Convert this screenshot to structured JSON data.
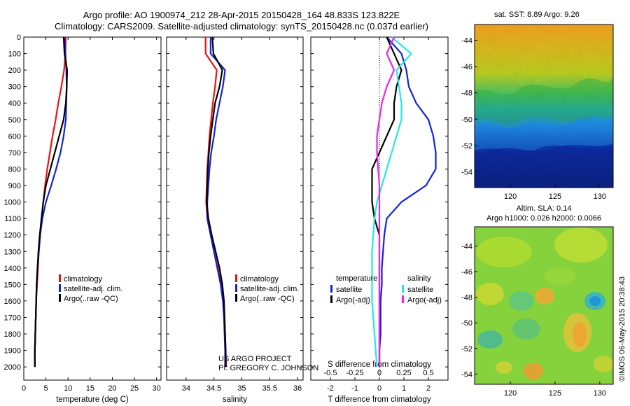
{
  "title_line1": "Argo profile: AO 1900974_212 28-Apr-2015 20150428_164 48.833S 123.822E",
  "title_line2": "Climatology: CARS2009. Satellite-adjusted climatology: synTS_20150428.nc (0.037d earlier)",
  "colors": {
    "climatology": "#ee1111",
    "satellite": "#1122dd",
    "argo": "#000000",
    "sal_satellite": "#22e8e8",
    "sal_argo": "#ee22ee"
  },
  "credit": {
    "line1": "US ARGO PROJECT",
    "line2": "PI: GREGORY C. JOHNSON"
  },
  "watermark": "©IMOS 06-May-2015 20:38:43",
  "legend_profile": [
    "climatology",
    "satellite-adj. clim.",
    "Argo(..raw -QC)"
  ],
  "legend_diff": {
    "temperature_header": "temperature",
    "salinity_header": "salinity",
    "items": [
      "satellite",
      "Argo(-adj)"
    ]
  },
  "map_sst": {
    "title": "sat. SST: 8.89 Argo: 9.26",
    "yticks": [
      "-44",
      "-46",
      "-48",
      "-50",
      "-52",
      "-54"
    ],
    "xticks": [
      "120",
      "125",
      "130"
    ]
  },
  "map_sla": {
    "title1": "Altim. SLA: 0.14",
    "title2": "Argo h1000: 0.026 h2000: 0.0066",
    "yticks": [
      "-44",
      "-46",
      "-48",
      "-50",
      "-52",
      "-54"
    ],
    "xticks": [
      "120",
      "125",
      "130"
    ]
  },
  "chart_data": [
    {
      "type": "line",
      "xlabel": "temperature (deg C)",
      "ylabel": "",
      "xlim": [
        0,
        31
      ],
      "ylim": [
        2080,
        0
      ],
      "xticks": [
        0,
        5,
        10,
        15,
        20,
        25,
        30
      ],
      "yticks": [
        0,
        100,
        200,
        300,
        400,
        500,
        600,
        700,
        800,
        900,
        1000,
        1100,
        1200,
        1300,
        1400,
        1500,
        1600,
        1700,
        1800,
        1900,
        2000
      ],
      "series": [
        {
          "name": "climatology",
          "color": "red",
          "x": [
            9.5,
            9.4,
            9.1,
            8.5,
            7.8,
            7.2,
            6.5,
            5.9,
            5.3,
            4.8,
            4.4,
            4.0,
            3.7,
            3.4,
            3.2,
            3.0,
            2.8,
            2.7,
            2.6,
            2.5,
            2.5
          ],
          "y": [
            0,
            100,
            200,
            300,
            400,
            500,
            600,
            700,
            800,
            900,
            1000,
            1100,
            1200,
            1300,
            1400,
            1500,
            1600,
            1700,
            1800,
            1900,
            2000
          ]
        },
        {
          "name": "satellite-adj. clim.",
          "color": "blue",
          "x": [
            9.2,
            9.4,
            9.6,
            9.7,
            9.6,
            9.5,
            9.0,
            8.3,
            7.3,
            6.2,
            5.0,
            4.2,
            3.7,
            3.4,
            3.1,
            2.9,
            2.8,
            2.7,
            2.6,
            2.5,
            2.5
          ],
          "y": [
            0,
            100,
            200,
            300,
            400,
            500,
            600,
            700,
            800,
            900,
            1000,
            1100,
            1200,
            1300,
            1400,
            1500,
            1600,
            1700,
            1800,
            1900,
            2000
          ]
        },
        {
          "name": "Argo(..raw -QC)",
          "color": "black",
          "x": [
            9.0,
            9.2,
            9.8,
            9.7,
            9.5,
            9.0,
            8.0,
            7.0,
            6.0,
            5.0,
            4.4,
            4.0,
            3.6,
            3.3,
            3.1,
            2.9,
            2.8,
            2.7,
            2.6,
            2.5,
            2.5
          ],
          "y": [
            0,
            100,
            200,
            300,
            400,
            500,
            600,
            700,
            800,
            900,
            1000,
            1100,
            1200,
            1300,
            1400,
            1500,
            1600,
            1700,
            1800,
            1900,
            2000
          ]
        }
      ]
    },
    {
      "type": "line",
      "xlabel": "salinity",
      "ylabel": "",
      "xlim": [
        33.65,
        36.1
      ],
      "ylim": [
        2080,
        0
      ],
      "xticks": [
        34,
        34.5,
        35,
        35.5,
        36
      ],
      "series": [
        {
          "name": "climatology",
          "color": "red",
          "x": [
            34.35,
            34.35,
            34.55,
            34.52,
            34.48,
            34.45,
            34.42,
            34.4,
            34.38,
            34.37,
            34.36,
            34.38,
            34.44,
            34.5,
            34.57,
            34.63,
            34.67,
            34.69,
            34.7,
            34.71,
            34.72
          ],
          "y": [
            0,
            100,
            200,
            300,
            400,
            500,
            600,
            700,
            800,
            900,
            1000,
            1100,
            1200,
            1300,
            1400,
            1500,
            1600,
            1700,
            1800,
            1900,
            2000
          ]
        },
        {
          "name": "satellite-adj. clim.",
          "color": "blue",
          "x": [
            34.44,
            34.44,
            34.7,
            34.66,
            34.6,
            34.54,
            34.5,
            34.45,
            34.42,
            34.4,
            34.38,
            34.38,
            34.44,
            34.5,
            34.56,
            34.62,
            34.66,
            34.68,
            34.69,
            34.7,
            34.7
          ],
          "y": [
            0,
            100,
            200,
            300,
            400,
            500,
            600,
            700,
            800,
            900,
            1000,
            1100,
            1200,
            1300,
            1400,
            1500,
            1600,
            1700,
            1800,
            1900,
            2000
          ]
        },
        {
          "name": "Argo(..raw -QC)",
          "color": "black",
          "x": [
            34.47,
            34.49,
            34.65,
            34.6,
            34.52,
            34.48,
            34.44,
            34.41,
            34.39,
            34.38,
            34.37,
            34.4,
            34.46,
            34.53,
            34.6,
            34.65,
            34.68,
            34.69,
            34.7,
            34.71,
            34.71
          ],
          "y": [
            0,
            100,
            200,
            300,
            400,
            500,
            600,
            700,
            800,
            900,
            1000,
            1100,
            1200,
            1300,
            1400,
            1500,
            1600,
            1700,
            1800,
            1900,
            2000
          ]
        }
      ]
    },
    {
      "type": "line",
      "xlabel": "T difference from climatology",
      "xlabel_top": "S difference from climatology",
      "xlim": [
        -2.8,
        2.8
      ],
      "ylim": [
        2080,
        0
      ],
      "xticks": [
        -2,
        -1,
        0,
        1,
        2
      ],
      "xticks_top_values": [
        -0.5,
        -0.25,
        0,
        0.25,
        0.5
      ],
      "xticks_top": [
        "-0.5",
        "-0.25",
        "0",
        "0.25",
        "0.5"
      ],
      "series": [
        {
          "name": "temperature satellite",
          "color": "blue",
          "x": [
            0.3,
            0.9,
            1.1,
            1.2,
            1.5,
            2.0,
            2.2,
            2.3,
            2.3,
            1.9,
            0.9,
            0.3,
            0.2,
            0.15,
            0.1,
            0.1,
            0.05,
            0.05,
            0.05,
            0.0,
            0.0
          ],
          "y": [
            0,
            100,
            200,
            300,
            400,
            500,
            600,
            700,
            800,
            900,
            1000,
            1100,
            1200,
            1300,
            1400,
            1500,
            1600,
            1700,
            1800,
            1900,
            2000
          ]
        },
        {
          "name": "temperature Argo(-adj)",
          "color": "black",
          "x": [
            0.3,
            0.6,
            0.9,
            0.7,
            0.6,
            0.6,
            0.3,
            0.0,
            -0.3,
            -0.3,
            -0.3,
            -0.2,
            0.0,
            0.0,
            0.0,
            0.0,
            0.0,
            0.0,
            0.0,
            0.0,
            0.0
          ],
          "y": [
            0,
            100,
            200,
            300,
            400,
            500,
            600,
            700,
            800,
            900,
            1000,
            1100,
            1200,
            1300,
            1400,
            1500,
            1600,
            1700,
            1800,
            1900,
            2000
          ]
        },
        {
          "name": "salinity satellite",
          "color": "cyan",
          "x": [
            0.5,
            1.3,
            0.7,
            0.8,
            0.9,
            0.9,
            0.7,
            0.5,
            0.3,
            0.1,
            -0.1,
            -0.2,
            -0.25,
            -0.3,
            -0.3,
            -0.3,
            -0.3,
            -0.25,
            -0.2,
            -0.15,
            -0.1
          ],
          "y": [
            0,
            100,
            200,
            300,
            400,
            500,
            600,
            700,
            800,
            900,
            1000,
            1100,
            1200,
            1300,
            1400,
            1500,
            1600,
            1700,
            1800,
            1900,
            2000
          ]
        },
        {
          "name": "salinity Argo(-adj)",
          "color": "magenta",
          "x": [
            0.6,
            0.3,
            0.6,
            0.3,
            0.1,
            0.0,
            -0.1,
            -0.1,
            -0.05,
            0.0,
            0.0,
            0.0,
            0.0,
            0.0,
            0.0,
            0.0,
            0.0,
            0.0,
            0.0,
            0.0,
            0.0
          ],
          "y": [
            0,
            100,
            200,
            300,
            400,
            500,
            600,
            700,
            800,
            900,
            1000,
            1100,
            1200,
            1300,
            1400,
            1500,
            1600,
            1700,
            1800,
            1900,
            2000
          ]
        }
      ]
    }
  ]
}
